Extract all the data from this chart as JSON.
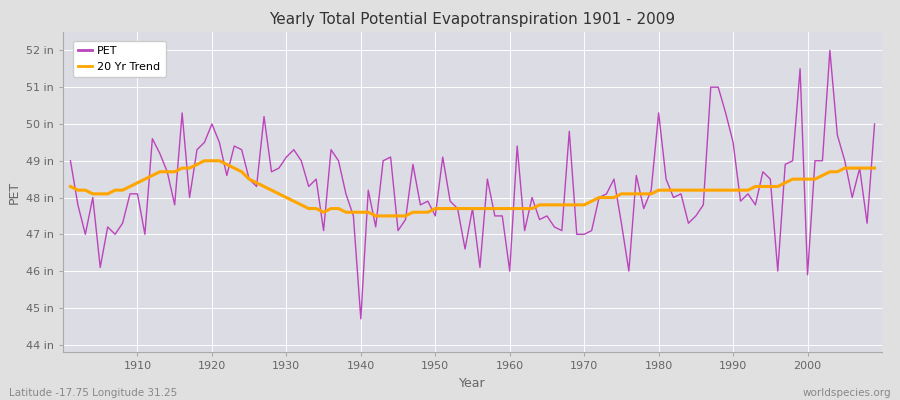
{
  "title": "Yearly Total Potential Evapotranspiration 1901 - 2009",
  "xlabel": "Year",
  "ylabel": "PET",
  "bottom_left": "Latitude -17.75 Longitude 31.25",
  "bottom_right": "worldspecies.org",
  "pet_color": "#BB44BB",
  "trend_color": "#FFA500",
  "fig_bg_color": "#E0E0E0",
  "plot_bg_color": "#DCDCE4",
  "ylim": [
    43.8,
    52.5
  ],
  "yticks": [
    44,
    45,
    46,
    47,
    48,
    49,
    50,
    51,
    52
  ],
  "ytick_labels": [
    "44 in",
    "45 in",
    "46 in",
    "47 in",
    "48 in",
    "49 in",
    "50 in",
    "51 in",
    "52 in"
  ],
  "years": [
    1901,
    1902,
    1903,
    1904,
    1905,
    1906,
    1907,
    1908,
    1909,
    1910,
    1911,
    1912,
    1913,
    1914,
    1915,
    1916,
    1917,
    1918,
    1919,
    1920,
    1921,
    1922,
    1923,
    1924,
    1925,
    1926,
    1927,
    1928,
    1929,
    1930,
    1931,
    1932,
    1933,
    1934,
    1935,
    1936,
    1937,
    1938,
    1939,
    1940,
    1941,
    1942,
    1943,
    1944,
    1945,
    1946,
    1947,
    1948,
    1949,
    1950,
    1951,
    1952,
    1953,
    1954,
    1955,
    1956,
    1957,
    1958,
    1959,
    1960,
    1961,
    1962,
    1963,
    1964,
    1965,
    1966,
    1967,
    1968,
    1969,
    1970,
    1971,
    1972,
    1973,
    1974,
    1975,
    1976,
    1977,
    1978,
    1979,
    1980,
    1981,
    1982,
    1983,
    1984,
    1985,
    1986,
    1987,
    1988,
    1989,
    1990,
    1991,
    1992,
    1993,
    1994,
    1995,
    1996,
    1997,
    1998,
    1999,
    2000,
    2001,
    2002,
    2003,
    2004,
    2005,
    2006,
    2007,
    2008,
    2009
  ],
  "pet": [
    49.0,
    47.8,
    47.0,
    48.0,
    46.1,
    47.2,
    47.0,
    47.3,
    48.1,
    48.1,
    47.0,
    49.6,
    49.2,
    48.7,
    47.8,
    50.3,
    48.0,
    49.3,
    49.5,
    50.0,
    49.5,
    48.6,
    49.4,
    49.3,
    48.5,
    48.3,
    50.2,
    48.7,
    48.8,
    49.1,
    49.3,
    49.0,
    48.3,
    48.5,
    47.1,
    49.3,
    49.0,
    48.1,
    47.5,
    44.7,
    48.2,
    47.2,
    49.0,
    49.1,
    47.1,
    47.4,
    48.9,
    47.8,
    47.9,
    47.5,
    49.1,
    47.9,
    47.7,
    46.6,
    47.7,
    46.1,
    48.5,
    47.5,
    47.5,
    46.0,
    49.4,
    47.1,
    48.0,
    47.4,
    47.5,
    47.2,
    47.1,
    49.8,
    47.0,
    47.0,
    47.1,
    48.0,
    48.1,
    48.5,
    47.3,
    46.0,
    48.6,
    47.7,
    48.2,
    50.3,
    48.5,
    48.0,
    48.1,
    47.3,
    47.5,
    47.8,
    51.0,
    51.0,
    50.3,
    49.5,
    47.9,
    48.1,
    47.8,
    48.7,
    48.5,
    46.0,
    48.9,
    49.0,
    51.5,
    45.9,
    49.0,
    49.0,
    52.0,
    49.7,
    49.0,
    48.0,
    48.8,
    47.3,
    50.0
  ],
  "trend": [
    48.3,
    48.2,
    48.2,
    48.1,
    48.1,
    48.1,
    48.2,
    48.2,
    48.3,
    48.4,
    48.5,
    48.6,
    48.7,
    48.7,
    48.7,
    48.8,
    48.8,
    48.9,
    49.0,
    49.0,
    49.0,
    48.9,
    48.8,
    48.7,
    48.5,
    48.4,
    48.3,
    48.2,
    48.1,
    48.0,
    47.9,
    47.8,
    47.7,
    47.7,
    47.6,
    47.7,
    47.7,
    47.6,
    47.6,
    47.6,
    47.6,
    47.5,
    47.5,
    47.5,
    47.5,
    47.5,
    47.6,
    47.6,
    47.6,
    47.7,
    47.7,
    47.7,
    47.7,
    47.7,
    47.7,
    47.7,
    47.7,
    47.7,
    47.7,
    47.7,
    47.7,
    47.7,
    47.7,
    47.8,
    47.8,
    47.8,
    47.8,
    47.8,
    47.8,
    47.8,
    47.9,
    48.0,
    48.0,
    48.0,
    48.1,
    48.1,
    48.1,
    48.1,
    48.1,
    48.2,
    48.2,
    48.2,
    48.2,
    48.2,
    48.2,
    48.2,
    48.2,
    48.2,
    48.2,
    48.2,
    48.2,
    48.2,
    48.3,
    48.3,
    48.3,
    48.3,
    48.4,
    48.5,
    48.5,
    48.5,
    48.5,
    48.6,
    48.7,
    48.7,
    48.8,
    48.8,
    48.8,
    48.8,
    48.8
  ]
}
